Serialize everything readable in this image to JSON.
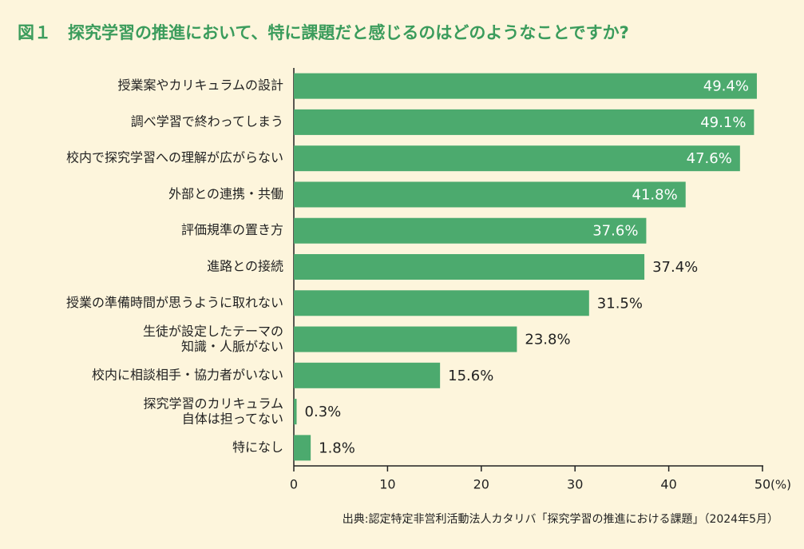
{
  "chart_data": {
    "type": "bar",
    "orientation": "horizontal",
    "title": "図１　探究学習の推進において、特に課題だと感じるのはどのようなことですか?",
    "categories": [
      "授業案やカリキュラムの設計",
      "調べ学習で終わってしまう",
      "校内で探究学習への理解が広がらない",
      "外部との連携・共働",
      "評価規準の置き方",
      "進路との接続",
      "授業の準備時間が思うように取れない",
      "生徒が設定したテーマの\n知識・人脈がない",
      "校内に相談相手・協力者がいない",
      "探究学習のカリキュラム\n自体は担ってない",
      "特になし"
    ],
    "values": [
      49.4,
      49.1,
      47.6,
      41.8,
      37.6,
      37.4,
      31.5,
      23.8,
      15.6,
      0.3,
      1.8
    ],
    "value_labels": [
      "49.4%",
      "49.1%",
      "47.6%",
      "41.8%",
      "37.6%",
      "37.4%",
      "31.5%",
      "23.8%",
      "15.6%",
      "0.3%",
      "1.8%"
    ],
    "color": "#4caa6e",
    "xlim": [
      0,
      50
    ],
    "xticks": [
      0,
      10,
      20,
      30,
      40,
      50
    ],
    "x_unit": "(%)",
    "source": "出典:認定特定非営利活動法人カタリバ「探究学習の推進における課題」（2024年5月）"
  }
}
